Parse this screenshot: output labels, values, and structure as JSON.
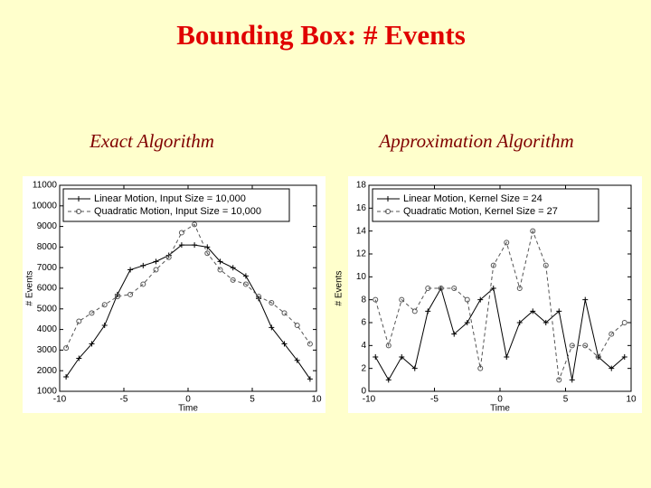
{
  "slide_title": "Bounding Box: # Events",
  "chart_data": [
    {
      "type": "line",
      "title": "Exact Algorithm",
      "xlabel": "Time",
      "ylabel": "# Events",
      "x": [
        -9.5,
        -8.5,
        -7.5,
        -6.5,
        -5.5,
        -4.5,
        -3.5,
        -2.5,
        -1.5,
        -0.5,
        0.5,
        1.5,
        2.5,
        3.5,
        4.5,
        5.5,
        6.5,
        7.5,
        8.5,
        9.5
      ],
      "series": [
        {
          "name": "Linear Motion, Input Size = 10,000",
          "color": "#000000",
          "linestyle": "solid",
          "marker": "plus",
          "values": [
            1700,
            2600,
            3300,
            4200,
            5700,
            6900,
            7100,
            7300,
            7600,
            8100,
            8100,
            8000,
            7300,
            7000,
            6600,
            5500,
            4100,
            3300,
            2500,
            1600
          ]
        },
        {
          "name": "Quadratic Motion, Input Size = 10,000",
          "color": "#555555",
          "linestyle": "dashed",
          "marker": "circle",
          "values": [
            3100,
            4400,
            4800,
            5200,
            5600,
            5700,
            6200,
            6900,
            7500,
            8700,
            9100,
            7700,
            6900,
            6400,
            6200,
            5600,
            5300,
            4800,
            4200,
            3300
          ]
        }
      ],
      "xlim": [
        -10,
        10
      ],
      "xticks": [
        -10,
        -5,
        0,
        5,
        10
      ],
      "ylim": [
        1000,
        11000
      ],
      "yticks": [
        1000,
        2000,
        3000,
        4000,
        5000,
        6000,
        7000,
        8000,
        9000,
        10000,
        11000
      ],
      "legend": "upper left"
    },
    {
      "type": "line",
      "title": "Approximation Algorithm",
      "xlabel": "Time",
      "ylabel": "# Events",
      "x": [
        -9.5,
        -8.5,
        -7.5,
        -6.5,
        -5.5,
        -4.5,
        -3.5,
        -2.5,
        -1.5,
        -0.5,
        0.5,
        1.5,
        2.5,
        3.5,
        4.5,
        5.5,
        6.5,
        7.5,
        8.5,
        9.5
      ],
      "series": [
        {
          "name": "Linear Motion, Kernel Size = 24",
          "color": "#000000",
          "linestyle": "solid",
          "marker": "plus",
          "values": [
            3,
            1,
            3,
            2,
            7,
            9,
            5,
            6,
            8,
            9,
            3,
            6,
            7,
            6,
            7,
            1,
            8,
            3,
            2,
            3
          ]
        },
        {
          "name": "Quadratic Motion, Kernel Size = 27",
          "color": "#555555",
          "linestyle": "dashed",
          "marker": "circle",
          "values": [
            8,
            4,
            8,
            7,
            9,
            9,
            9,
            8,
            2,
            11,
            13,
            9,
            14,
            11,
            1,
            4,
            4,
            3,
            5,
            6
          ]
        }
      ],
      "xlim": [
        -10,
        10
      ],
      "xticks": [
        -10,
        -5,
        0,
        5,
        10
      ],
      "ylim": [
        0,
        18
      ],
      "yticks": [
        0,
        2,
        4,
        6,
        8,
        10,
        12,
        14,
        16,
        18
      ],
      "legend": "upper left"
    }
  ]
}
